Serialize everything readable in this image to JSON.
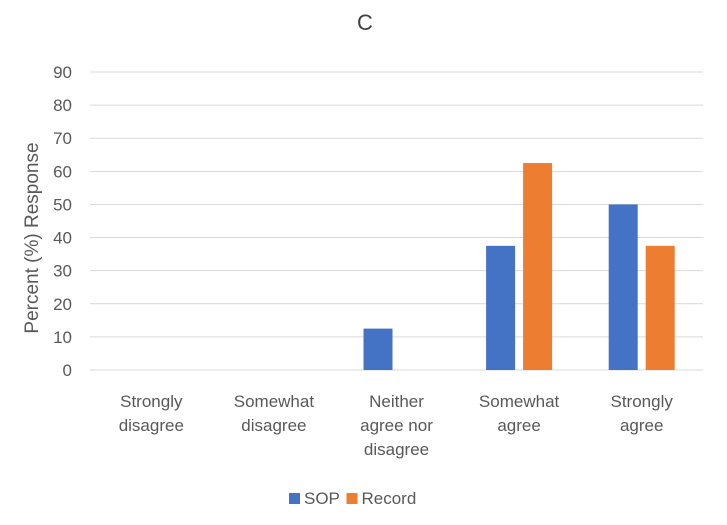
{
  "chart_data": {
    "type": "bar",
    "title": "C",
    "ylabel": "Percent (%) Response",
    "xlabel": "",
    "ylim": [
      0,
      90
    ],
    "yticks": [
      0,
      10,
      20,
      30,
      40,
      50,
      60,
      70,
      80,
      90
    ],
    "grid": true,
    "legend_position": "bottom",
    "categories": [
      [
        "Strongly",
        "disagree"
      ],
      [
        "Somewhat",
        "disagree"
      ],
      [
        "Neither",
        "agree nor",
        "disagree"
      ],
      [
        "Somewhat",
        "agree"
      ],
      [
        "Strongly",
        "agree"
      ]
    ],
    "series": [
      {
        "name": "SOP",
        "color": "#4472C4",
        "values": [
          0,
          0,
          12.5,
          37.5,
          50
        ]
      },
      {
        "name": "Record",
        "color": "#ED7D31",
        "values": [
          0,
          0,
          0,
          62.5,
          37.5
        ]
      }
    ]
  }
}
